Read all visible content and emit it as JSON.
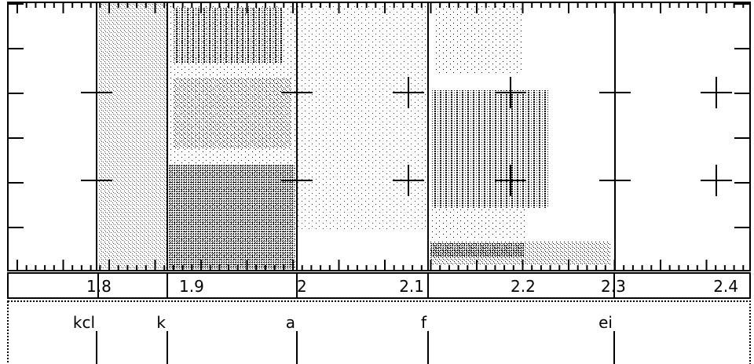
{
  "time_axis": {
    "labels": [
      "1.8",
      "1.9",
      "2",
      "2.1",
      "2.2",
      "2.3",
      "2.4"
    ]
  },
  "segments": {
    "labels": [
      "kcl",
      "k",
      "a",
      "f",
      "ei"
    ]
  }
}
